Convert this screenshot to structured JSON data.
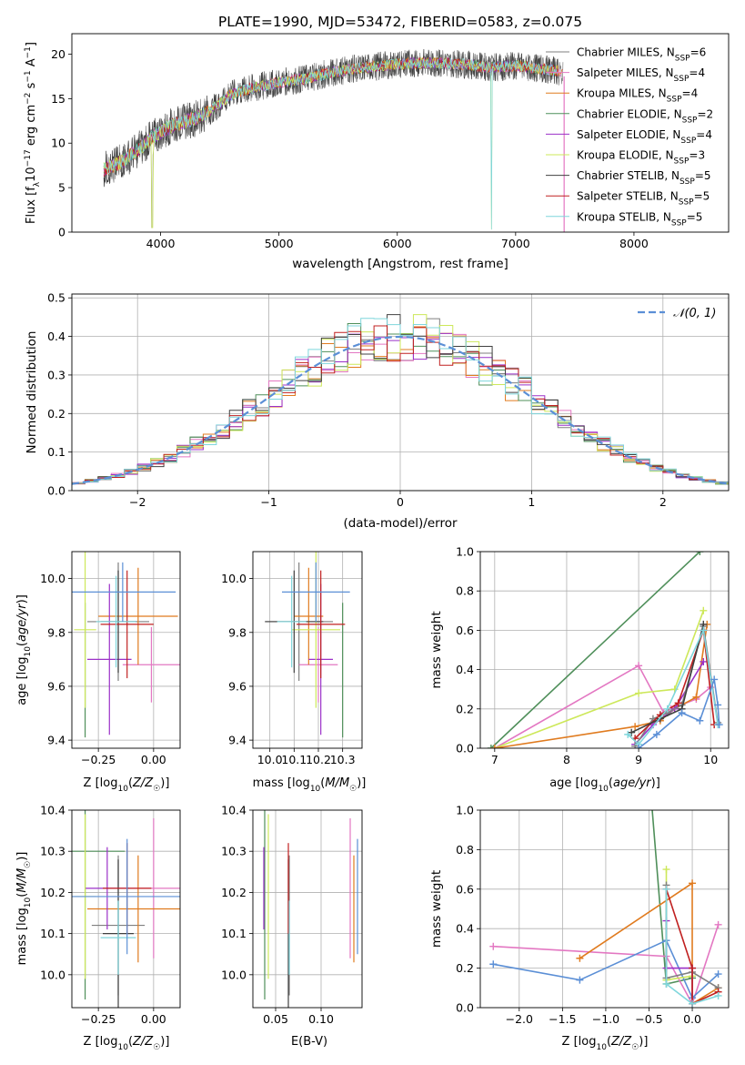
{
  "figure_title": "PLATE=1990, MJD=53472, FIBERID=0583, z=0.075",
  "colors": {
    "chabrier_miles": "#7f7f7f",
    "salpeter_miles": "#e377c2",
    "kroupa_miles": "#e07b1f",
    "chabrier_elodie": "#4f8f5a",
    "salpeter_elodie": "#9b30c8",
    "kroupa_elodie": "#cde85a",
    "chabrier_stelib": "#404040",
    "salpeter_stelib": "#c02020",
    "kroupa_stelib": "#7fd6dc",
    "normal_curve": "#5b8fd6",
    "grid": "#b0b0b0"
  },
  "chart_data": [
    {
      "id": "spectrum",
      "type": "line",
      "title": "PLATE=1990, MJD=53472, FIBERID=0583, z=0.075",
      "xlabel": "wavelength [Angstrom, rest frame]",
      "ylabel": "Flux [f_λ 10^-17 erg cm^-2 s^-1 A^-1]",
      "xlim": [
        3250,
        8800
      ],
      "ylim": [
        0,
        22.3
      ],
      "xticks": [
        4000,
        5000,
        6000,
        7000,
        8000
      ],
      "yticks": [
        0,
        5,
        10,
        15,
        20
      ],
      "grid": false,
      "legend_position": "right",
      "x": [
        3500,
        3600,
        3700,
        3800,
        3900,
        4000,
        4100,
        4200,
        4300,
        4400,
        4500,
        4600,
        4800,
        5000,
        5200,
        5400,
        5600,
        5800,
        6000,
        6200,
        6400,
        6600,
        6800,
        7000,
        7200,
        7400
      ],
      "continuum": [
        7.0,
        7.4,
        8.2,
        9.2,
        10.3,
        11.3,
        12.0,
        12.4,
        12.8,
        13.5,
        14.4,
        15.5,
        16.3,
        16.8,
        17.2,
        17.8,
        18.3,
        18.6,
        18.9,
        19.0,
        19.0,
        18.8,
        18.5,
        18.7,
        18.4,
        18.0
      ],
      "series": [
        {
          "name": "Chabrier MILES, N_SSP=6",
          "key": "chabrier_miles"
        },
        {
          "name": "Salpeter MILES, N_SSP=4",
          "key": "salpeter_miles"
        },
        {
          "name": "Kroupa MILES, N_SSP=4",
          "key": "kroupa_miles"
        },
        {
          "name": "Chabrier ELODIE, N_SSP=2",
          "key": "chabrier_elodie"
        },
        {
          "name": "Salpeter ELODIE, N_SSP=4",
          "key": "salpeter_elodie"
        },
        {
          "name": "Kroupa ELODIE, N_SSP=3",
          "key": "kroupa_elodie"
        },
        {
          "name": "Chabrier STELIB, N_SSP=5",
          "key": "chabrier_stelib"
        },
        {
          "name": "Salpeter STELIB, N_SSP=5",
          "key": "salpeter_stelib"
        },
        {
          "name": "Kroupa STELIB, N_SSP=5",
          "key": "kroupa_stelib"
        }
      ]
    },
    {
      "id": "residuals",
      "type": "line",
      "xlabel": "(data-model)/error",
      "ylabel": "Normed distribution",
      "xlim": [
        -2.5,
        2.5
      ],
      "ylim": [
        0,
        0.51
      ],
      "xticks": [
        -2,
        -1,
        0,
        1,
        2
      ],
      "yticks": [
        0.0,
        0.1,
        0.2,
        0.3,
        0.4,
        0.5
      ],
      "grid": true,
      "legend": [
        "𝒩(0, 1)"
      ],
      "legend_position": "top-right",
      "bin_width": 0.1,
      "bin_edges_from": -2.5
    },
    {
      "id": "age_vs_Z",
      "type": "scatter",
      "xlabel": "Z [log10(Z/Z☉)]",
      "ylabel": "age [log10(age/yr)]",
      "xlim": [
        -0.37,
        0.12
      ],
      "ylim": [
        9.37,
        10.1
      ],
      "xticks": [
        -0.25,
        0.0
      ],
      "yticks": [
        9.4,
        9.6,
        9.8,
        10.0
      ],
      "grid": true,
      "points": [
        {
          "key": "chabrier_miles",
          "x": -0.16,
          "xerr": 0.14,
          "y": 9.84,
          "yerr": 0.22
        },
        {
          "key": "salpeter_miles",
          "x": -0.01,
          "xerr": 0.13,
          "y": 9.68,
          "yerr": 0.14
        },
        {
          "key": "kroupa_miles",
          "x": -0.07,
          "xerr": 0.18,
          "y": 9.86,
          "yerr": 0.18
        },
        {
          "key": "chabrier_elodie",
          "x": -0.31,
          "xerr": 0.0,
          "y": 9.66,
          "yerr": 0.25
        },
        {
          "key": "salpeter_elodie",
          "x": -0.2,
          "xerr": 0.1,
          "y": 9.7,
          "yerr": 0.28
        },
        {
          "key": "kroupa_elodie",
          "x": -0.31,
          "xerr": 0.05,
          "y": 9.81,
          "yerr": 0.29
        },
        {
          "key": "chabrier_stelib",
          "x": -0.16,
          "xerr": 0.08,
          "y": 9.84,
          "yerr": 0.19
        },
        {
          "key": "salpeter_stelib",
          "x": -0.12,
          "xerr": 0.12,
          "y": 9.83,
          "yerr": 0.2
        },
        {
          "key": "kroupa_stelib",
          "x": -0.17,
          "xerr": 0.09,
          "y": 9.84,
          "yerr": 0.17
        },
        {
          "key": "normal_curve",
          "x": -0.14,
          "xerr": 0.24,
          "y": 9.95,
          "yerr": 0.11
        }
      ]
    },
    {
      "id": "age_vs_mass",
      "type": "scatter",
      "xlabel": "mass [log10(M/M☉)]",
      "ylabel": "",
      "xlim": [
        9.93,
        10.38
      ],
      "ylim": [
        9.37,
        10.1
      ],
      "xticks": [
        10.0,
        10.1,
        10.2,
        10.3
      ],
      "yticks": [
        9.4,
        9.6,
        9.8,
        10.0
      ],
      "grid": true,
      "points": [
        {
          "key": "chabrier_miles",
          "x": 10.12,
          "xerr": 0.14,
          "y": 9.84,
          "yerr": 0.22
        },
        {
          "key": "salpeter_miles",
          "x": 10.2,
          "xerr": 0.08,
          "y": 9.68,
          "yerr": 0.14
        },
        {
          "key": "kroupa_miles",
          "x": 10.16,
          "xerr": 0.06,
          "y": 9.86,
          "yerr": 0.18
        },
        {
          "key": "chabrier_elodie",
          "x": 10.3,
          "xerr": 0.0,
          "y": 9.66,
          "yerr": 0.25
        },
        {
          "key": "salpeter_elodie",
          "x": 10.21,
          "xerr": 0.05,
          "y": 9.7,
          "yerr": 0.28
        },
        {
          "key": "kroupa_elodie",
          "x": 10.19,
          "xerr": 0.1,
          "y": 9.81,
          "yerr": 0.29
        },
        {
          "key": "chabrier_stelib",
          "x": 10.1,
          "xerr": 0.12,
          "y": 9.84,
          "yerr": 0.19
        },
        {
          "key": "salpeter_stelib",
          "x": 10.21,
          "xerr": 0.1,
          "y": 9.83,
          "yerr": 0.2
        },
        {
          "key": "kroupa_stelib",
          "x": 10.09,
          "xerr": 0.06,
          "y": 9.84,
          "yerr": 0.17
        },
        {
          "key": "normal_curve",
          "x": 10.19,
          "xerr": 0.14,
          "y": 9.95,
          "yerr": 0.11
        }
      ]
    },
    {
      "id": "age_mass_weight",
      "type": "line",
      "xlabel": "age [log10(age/yr)]",
      "ylabel": "mass weight",
      "xlim": [
        6.8,
        10.25
      ],
      "ylim": [
        0,
        1.0
      ],
      "xticks": [
        7,
        8,
        9,
        10
      ],
      "yticks": [
        0.0,
        0.2,
        0.4,
        0.6,
        0.8,
        1.0
      ],
      "grid": true,
      "series": [
        {
          "key": "chabrier_elodie",
          "x": [
            6.95,
            9.85
          ],
          "y": [
            0.0,
            1.0
          ]
        },
        {
          "key": "salpeter_miles",
          "x": [
            7.0,
            9.0,
            9.35,
            9.45,
            9.8,
            10.0
          ],
          "y": [
            0.0,
            0.42,
            0.18,
            0.2,
            0.25,
            0.31
          ]
        },
        {
          "key": "kroupa_elodie",
          "x": [
            7.0,
            9.0,
            9.5,
            9.9
          ],
          "y": [
            0.0,
            0.28,
            0.3,
            0.7
          ]
        },
        {
          "key": "kroupa_miles",
          "x": [
            7.0,
            8.95,
            9.3,
            9.5,
            9.8,
            9.95
          ],
          "y": [
            0.0,
            0.11,
            0.14,
            0.2,
            0.26,
            0.63
          ]
        },
        {
          "key": "salpeter_elodie",
          "x": [
            8.95,
            9.2,
            9.5,
            9.9
          ],
          "y": [
            0.02,
            0.12,
            0.2,
            0.44
          ]
        },
        {
          "key": "chabrier_miles",
          "x": [
            8.95,
            9.2,
            9.4,
            9.6,
            9.9,
            10.1
          ],
          "y": [
            0.01,
            0.15,
            0.18,
            0.22,
            0.62,
            0.13
          ]
        },
        {
          "key": "salpeter_stelib",
          "x": [
            8.95,
            9.3,
            9.55,
            9.9,
            10.05
          ],
          "y": [
            0.05,
            0.17,
            0.23,
            0.6,
            0.12
          ]
        },
        {
          "key": "chabrier_stelib",
          "x": [
            8.9,
            9.3,
            9.6,
            9.9
          ],
          "y": [
            0.08,
            0.15,
            0.2,
            0.63
          ]
        },
        {
          "key": "kroupa_stelib",
          "x": [
            8.85,
            9.0,
            9.4,
            9.9,
            10.1
          ],
          "y": [
            0.07,
            0.02,
            0.2,
            0.6,
            0.12
          ]
        },
        {
          "key": "normal_curve",
          "x": [
            9.0,
            9.25,
            9.6,
            9.85,
            10.05,
            10.1,
            10.12
          ],
          "y": [
            0.0,
            0.07,
            0.18,
            0.14,
            0.35,
            0.22,
            0.12
          ]
        }
      ]
    },
    {
      "id": "mass_vs_Z",
      "type": "scatter",
      "xlabel": "Z [log10(Z/Z☉)]",
      "ylabel": "mass [log10(M/M☉)]",
      "xlim": [
        -0.37,
        0.12
      ],
      "ylim": [
        9.92,
        10.4
      ],
      "xticks": [
        -0.25,
        0.0
      ],
      "yticks": [
        10.0,
        10.1,
        10.2,
        10.3,
        10.4
      ],
      "grid": true,
      "points": [
        {
          "key": "chabrier_miles",
          "x": -0.16,
          "xerr": 0.12,
          "y": 10.12,
          "yerr": 0.17
        },
        {
          "key": "salpeter_miles",
          "x": 0.0,
          "xerr": 0.12,
          "y": 10.21,
          "yerr": 0.17
        },
        {
          "key": "kroupa_miles",
          "x": -0.07,
          "xerr": 0.23,
          "y": 10.16,
          "yerr": 0.13
        },
        {
          "key": "chabrier_elodie",
          "x": -0.31,
          "xerr": 0.18,
          "y": 10.3,
          "yerr": 0.36
        },
        {
          "key": "salpeter_elodie",
          "x": -0.21,
          "xerr": 0.1,
          "y": 10.21,
          "yerr": 0.1
        },
        {
          "key": "kroupa_elodie",
          "x": -0.31,
          "xerr": 0.05,
          "y": 10.19,
          "yerr": 0.2
        },
        {
          "key": "chabrier_stelib",
          "x": -0.16,
          "xerr": 0.07,
          "y": 10.1,
          "yerr": 0.18
        },
        {
          "key": "salpeter_stelib",
          "x": -0.12,
          "xerr": 0.11,
          "y": 10.21,
          "yerr": 0.11
        },
        {
          "key": "kroupa_stelib",
          "x": -0.16,
          "xerr": 0.08,
          "y": 10.09,
          "yerr": 0.09
        },
        {
          "key": "normal_curve",
          "x": -0.12,
          "xerr": 0.25,
          "y": 10.19,
          "yerr": 0.14
        }
      ]
    },
    {
      "id": "mass_vs_ebv",
      "type": "scatter",
      "xlabel": "E(B-V)",
      "ylabel": "",
      "xlim": [
        0.025,
        0.145
      ],
      "ylim": [
        9.92,
        10.4
      ],
      "xticks": [
        0.05,
        0.1
      ],
      "yticks": [
        10.0,
        10.1,
        10.2,
        10.3,
        10.4
      ],
      "grid": true,
      "points": [
        {
          "key": "chabrier_miles",
          "x": 0.065,
          "xerr": 0.0,
          "y": 10.12,
          "yerr": 0.17
        },
        {
          "key": "salpeter_miles",
          "x": 0.132,
          "xerr": 0.0,
          "y": 10.21,
          "yerr": 0.17
        },
        {
          "key": "kroupa_miles",
          "x": 0.136,
          "xerr": 0.0,
          "y": 10.16,
          "yerr": 0.13
        },
        {
          "key": "chabrier_elodie",
          "x": 0.038,
          "xerr": 0.0,
          "y": 10.3,
          "yerr": 0.36
        },
        {
          "key": "salpeter_elodie",
          "x": 0.037,
          "xerr": 0.0,
          "y": 10.21,
          "yerr": 0.1
        },
        {
          "key": "kroupa_elodie",
          "x": 0.042,
          "xerr": 0.0,
          "y": 10.19,
          "yerr": 0.2
        },
        {
          "key": "chabrier_stelib",
          "x": 0.064,
          "xerr": 0.0,
          "y": 10.1,
          "yerr": 0.18
        },
        {
          "key": "salpeter_stelib",
          "x": 0.064,
          "xerr": 0.0,
          "y": 10.21,
          "yerr": 0.11
        },
        {
          "key": "kroupa_stelib",
          "x": 0.065,
          "xerr": 0.0,
          "y": 10.09,
          "yerr": 0.09
        },
        {
          "key": "normal_curve",
          "x": 0.14,
          "xerr": 0.0,
          "y": 10.19,
          "yerr": 0.14
        }
      ]
    },
    {
      "id": "Z_mass_weight",
      "type": "line",
      "xlabel": "Z [log10(Z/Z☉)]",
      "ylabel": "mass weight",
      "xlim": [
        -2.45,
        0.42
      ],
      "ylim": [
        0,
        1.0
      ],
      "xticks": [
        -2.0,
        -1.5,
        -1.0,
        -0.5,
        0.0
      ],
      "yticks": [
        0.0,
        0.2,
        0.4,
        0.6,
        0.8,
        1.0
      ],
      "grid": true,
      "series": [
        {
          "key": "chabrier_elodie",
          "x": [
            -0.5,
            -0.3,
            0.0
          ],
          "y": [
            1.2,
            0.12,
            0.15
          ]
        },
        {
          "key": "salpeter_miles",
          "x": [
            -2.3,
            -0.3,
            0.0,
            0.3
          ],
          "y": [
            0.31,
            0.26,
            0.02,
            0.42
          ]
        },
        {
          "key": "normal_curve",
          "x": [
            -2.3,
            -1.3,
            -0.3,
            0.0,
            0.3
          ],
          "y": [
            0.22,
            0.14,
            0.34,
            0.05,
            0.17
          ]
        },
        {
          "key": "kroupa_miles",
          "x": [
            -1.3,
            0.0,
            0.0,
            0.3
          ],
          "y": [
            0.25,
            0.63,
            0.02,
            0.1
          ]
        },
        {
          "key": "kroupa_elodie",
          "x": [
            -0.3,
            -0.3,
            0.0
          ],
          "y": [
            0.7,
            0.14,
            0.16
          ]
        },
        {
          "key": "salpeter_elodie",
          "x": [
            -0.3,
            -0.3,
            0.0,
            0.0
          ],
          "y": [
            0.44,
            0.2,
            0.2,
            0.02
          ]
        },
        {
          "key": "chabrier_miles",
          "x": [
            -0.3,
            -0.3,
            0.0,
            0.3
          ],
          "y": [
            0.62,
            0.15,
            0.18,
            0.1
          ]
        },
        {
          "key": "salpeter_stelib",
          "x": [
            -0.3,
            0.0,
            0.0,
            0.3
          ],
          "y": [
            0.6,
            0.2,
            0.02,
            0.08
          ]
        },
        {
          "key": "kroupa_stelib",
          "x": [
            -0.3,
            -0.3,
            0.0,
            0.3
          ],
          "y": [
            0.6,
            0.12,
            0.02,
            0.06
          ]
        }
      ]
    }
  ]
}
